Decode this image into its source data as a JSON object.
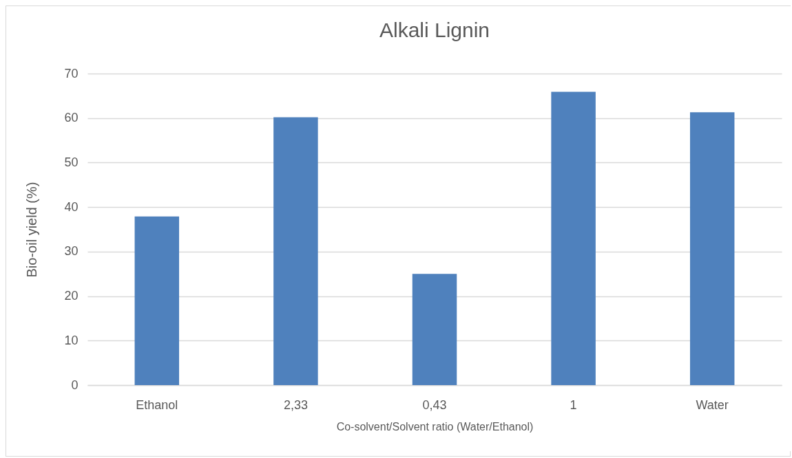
{
  "chart_data": {
    "type": "bar",
    "title": "Alkali Lignin",
    "xlabel": "Co-solvent/Solvent ratio (Water/Ethanol)",
    "ylabel": "Bio-oil yield (%)",
    "categories": [
      "Ethanol",
      "2,33",
      "0,43",
      "1",
      "Water"
    ],
    "values": [
      37.9,
      60.2,
      25.0,
      65.9,
      61.3
    ],
    "color": "#4f81bd",
    "ylim": [
      0,
      70
    ],
    "yticks": [
      0,
      10,
      20,
      30,
      40,
      50,
      60,
      70
    ],
    "grid": "y"
  }
}
